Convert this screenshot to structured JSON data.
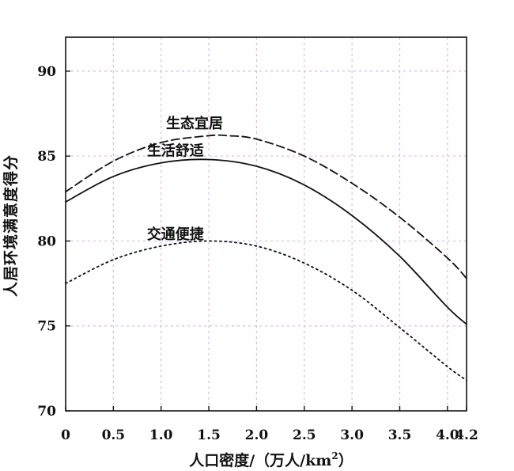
{
  "chart_data": {
    "type": "line",
    "xlabel_text": "人口密度/（万人/km",
    "xlabel_sup": "2",
    "xlabel_close": "）",
    "ylabel": "人居环境满意度得分",
    "xlim": [
      0,
      4.2
    ],
    "ylim": [
      70,
      92
    ],
    "xticks": [
      0,
      0.5,
      1.0,
      1.5,
      2.0,
      2.5,
      3.0,
      3.5,
      4.0,
      4.2
    ],
    "xtick_labels": [
      "0",
      "0.5",
      "1.0",
      "1.5",
      "2.0",
      "2.5",
      "3.0",
      "3.5",
      "4.0",
      "4.2"
    ],
    "yticks": [
      70,
      75,
      80,
      85,
      90
    ],
    "ytick_labels": [
      "70",
      "75",
      "80",
      "85",
      "90"
    ],
    "grid": true,
    "grid_color": "#d9b8e6",
    "line_color": "#111111",
    "series": [
      {
        "name": "生态宜居",
        "style": "dashed",
        "x": [
          0,
          0.5,
          1.0,
          1.5,
          1.7,
          2.0,
          2.5,
          3.0,
          3.5,
          4.0,
          4.2
        ],
        "values": [
          82.9,
          84.7,
          85.8,
          86.2,
          86.2,
          86.0,
          85.0,
          83.4,
          81.4,
          79.0,
          77.8
        ]
      },
      {
        "name": "生活舒适",
        "style": "solid",
        "x": [
          0,
          0.5,
          1.0,
          1.5,
          2.0,
          2.5,
          3.0,
          3.5,
          4.0,
          4.2
        ],
        "values": [
          82.3,
          83.8,
          84.6,
          84.8,
          84.4,
          83.3,
          81.5,
          79.1,
          76.1,
          75.1
        ]
      },
      {
        "name": "交通便捷",
        "style": "dotted",
        "x": [
          0,
          0.5,
          1.0,
          1.5,
          2.0,
          2.5,
          3.0,
          3.5,
          4.0,
          4.2
        ],
        "values": [
          77.5,
          78.9,
          79.7,
          80.0,
          79.7,
          78.7,
          77.1,
          74.9,
          72.6,
          71.8
        ]
      }
    ]
  }
}
